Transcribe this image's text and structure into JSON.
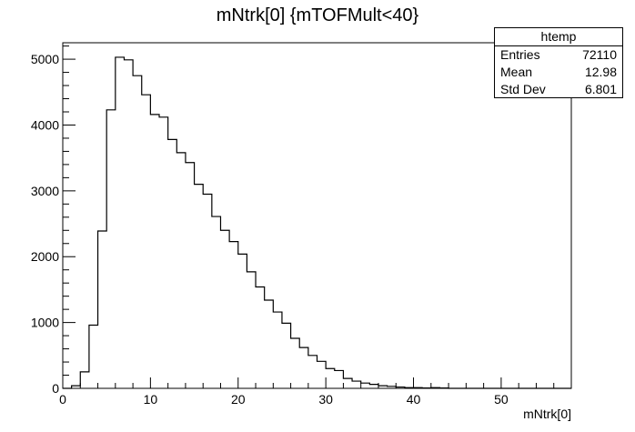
{
  "chart_data": {
    "type": "histogram",
    "title": "mNtrk[0] {mTOFMult<40}",
    "xlabel": "mNtrk[0]",
    "ylabel": "",
    "xlim": [
      0,
      58
    ],
    "ylim": [
      0,
      5250
    ],
    "bin_width": 1,
    "x_ticks": [
      0,
      10,
      20,
      30,
      40,
      50
    ],
    "y_ticks": [
      0,
      1000,
      2000,
      3000,
      4000,
      5000
    ],
    "bin_edges_start": 0,
    "values": [
      0,
      40,
      250,
      960,
      2390,
      4230,
      5030,
      4990,
      4750,
      4460,
      4160,
      4120,
      3780,
      3580,
      3430,
      3100,
      2950,
      2610,
      2400,
      2230,
      2040,
      1770,
      1540,
      1340,
      1160,
      990,
      760,
      620,
      500,
      410,
      300,
      270,
      150,
      110,
      80,
      60,
      40,
      30,
      20,
      10,
      10,
      5,
      10,
      5,
      0,
      0,
      0,
      0,
      0,
      0,
      0,
      0,
      0,
      0,
      0,
      0,
      0,
      0
    ],
    "stats": {
      "name": "htemp",
      "rows": [
        {
          "label": "Entries",
          "value": "72110"
        },
        {
          "label": "Mean",
          "value": "12.98"
        },
        {
          "label": "Std Dev",
          "value": "6.801"
        }
      ]
    },
    "line_color": "#000000"
  }
}
